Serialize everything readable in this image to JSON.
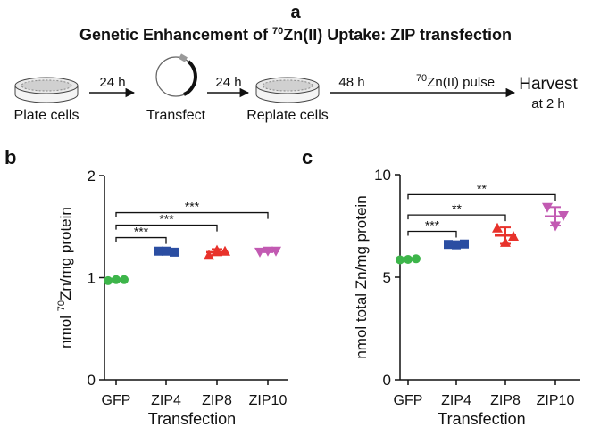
{
  "panel_a": {
    "label": "a",
    "title": {
      "before": "Genetic Enhancement of ",
      "sup": "70",
      "after": "Zn(II) Uptake: ZIP transfection"
    },
    "steps": {
      "plate": "Plate cells",
      "time1": "24 h",
      "transfect": "Transfect",
      "time2": "24 h",
      "replate": "Replate cells",
      "time3": "48 h",
      "pulse_sup": "70",
      "pulse": "Zn(II) pulse",
      "harvest": "Harvest",
      "harvest_time": "at 2 h"
    }
  },
  "chart_data": [
    {
      "type": "scatter",
      "panel_label": "b",
      "categories": [
        "GFP",
        "ZIP4",
        "ZIP8",
        "ZIP10"
      ],
      "colors": [
        "#3db54a",
        "#2b4ea2",
        "#e8322b",
        "#c25ab2"
      ],
      "markers": [
        "circle",
        "square",
        "triangle",
        "triangle-down"
      ],
      "points": [
        [
          0.97,
          0.98,
          0.98
        ],
        [
          1.26,
          1.26,
          1.25
        ],
        [
          1.22,
          1.27,
          1.26
        ],
        [
          1.25,
          1.26,
          1.26
        ]
      ],
      "means": [
        0.98,
        1.26,
        1.25,
        1.26
      ],
      "errors": [
        0.01,
        0.01,
        0.03,
        0.01
      ],
      "ylim": [
        0,
        2
      ],
      "yticks": [
        0,
        1,
        2
      ],
      "xlabel": "Transfection",
      "ylabel": {
        "before": "nmol ",
        "sup": "70",
        "after": "Zn/mg protein"
      },
      "annotations": [
        {
          "from": 0,
          "to": 1,
          "label": "***"
        },
        {
          "from": 0,
          "to": 2,
          "label": "***"
        },
        {
          "from": 0,
          "to": 3,
          "label": "***"
        }
      ]
    },
    {
      "type": "scatter",
      "panel_label": "c",
      "categories": [
        "GFP",
        "ZIP4",
        "ZIP8",
        "ZIP10"
      ],
      "colors": [
        "#3db54a",
        "#2b4ea2",
        "#e8322b",
        "#c25ab2"
      ],
      "markers": [
        "circle",
        "square",
        "triangle",
        "triangle-down"
      ],
      "points": [
        [
          5.85,
          5.87,
          5.9
        ],
        [
          6.6,
          6.58,
          6.62
        ],
        [
          7.4,
          6.7,
          7.0
        ],
        [
          8.4,
          7.5,
          8.0
        ]
      ],
      "means": [
        5.87,
        6.6,
        7.03,
        7.97
      ],
      "errors": [
        0.03,
        0.03,
        0.4,
        0.45
      ],
      "ylim": [
        0,
        10
      ],
      "yticks": [
        0,
        5,
        10
      ],
      "xlabel": "Transfection",
      "ylabel": "nmol total Zn/mg protein",
      "annotations": [
        {
          "from": 0,
          "to": 1,
          "label": "***"
        },
        {
          "from": 0,
          "to": 2,
          "label": "**"
        },
        {
          "from": 0,
          "to": 3,
          "label": "**"
        }
      ]
    }
  ]
}
